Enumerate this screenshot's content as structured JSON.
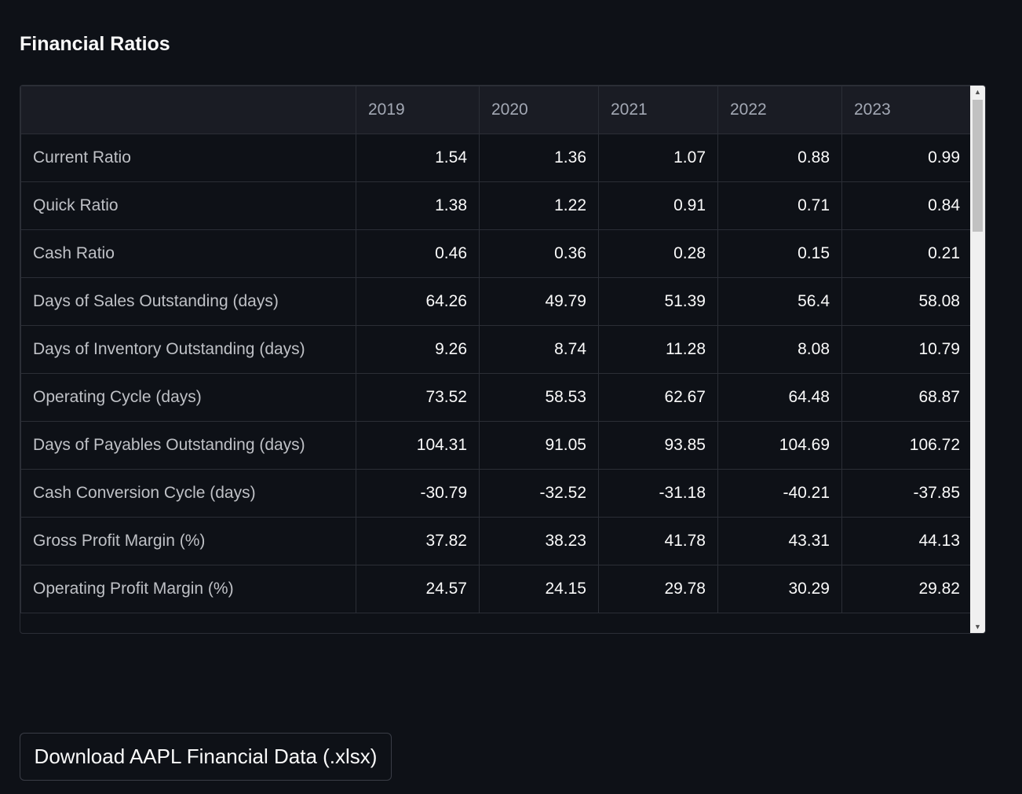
{
  "header": {
    "title": "Financial Ratios"
  },
  "table": {
    "columns": [
      "2019",
      "2020",
      "2021",
      "2022",
      "2023"
    ],
    "rows": [
      {
        "label": "Current Ratio",
        "values": [
          1.54,
          1.36,
          1.07,
          0.88,
          0.99
        ]
      },
      {
        "label": "Quick Ratio",
        "values": [
          1.38,
          1.22,
          0.91,
          0.71,
          0.84
        ]
      },
      {
        "label": "Cash Ratio",
        "values": [
          0.46,
          0.36,
          0.28,
          0.15,
          0.21
        ]
      },
      {
        "label": "Days of Sales Outstanding (days)",
        "values": [
          64.26,
          49.79,
          51.39,
          56.4,
          58.08
        ]
      },
      {
        "label": "Days of Inventory Outstanding (days)",
        "values": [
          9.26,
          8.74,
          11.28,
          8.08,
          10.79
        ]
      },
      {
        "label": "Operating Cycle (days)",
        "values": [
          73.52,
          58.53,
          62.67,
          64.48,
          68.87
        ]
      },
      {
        "label": "Days of Payables Outstanding (days)",
        "values": [
          104.31,
          91.05,
          93.85,
          104.69,
          106.72
        ]
      },
      {
        "label": "Cash Conversion Cycle (days)",
        "values": [
          -30.79,
          -32.52,
          -31.18,
          -40.21,
          -37.85
        ]
      },
      {
        "label": "Gross Profit Margin (%)",
        "values": [
          37.82,
          38.23,
          41.78,
          43.31,
          44.13
        ]
      },
      {
        "label": "Operating Profit Margin (%)",
        "values": [
          24.57,
          24.15,
          29.78,
          30.29,
          29.82
        ]
      }
    ]
  },
  "button": {
    "label": "Download AAPL Financial Data (.xlsx)"
  }
}
